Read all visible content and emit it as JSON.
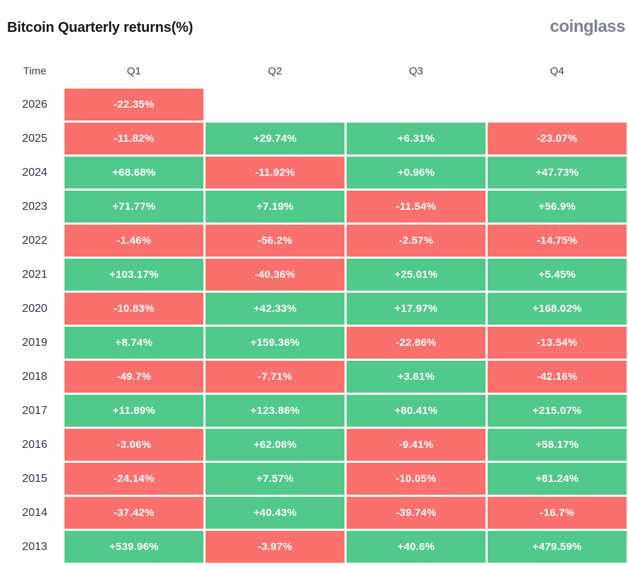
{
  "header": {
    "title": "Bitcoin Quarterly returns(%)",
    "logo_text": "coinglass"
  },
  "colors": {
    "positive": "#51c98b",
    "negative": "#f9706c",
    "cell_text": "#ffffff",
    "year_text": "#2c3444",
    "column_header_text": "#3a4250",
    "title_text": "#15181e",
    "logo_text": "#7c828d",
    "background": "#ffffff"
  },
  "chart_data": {
    "type": "heatmap",
    "title": "Bitcoin Quarterly returns(%)",
    "unit": "%",
    "legend_position": "none",
    "color_rule": "positive values green, negative values red",
    "columns": [
      "Time",
      "Q1",
      "Q2",
      "Q3",
      "Q4"
    ],
    "x_categories": [
      "Q1",
      "Q2",
      "Q3",
      "Q4"
    ],
    "y_categories": [
      "2026",
      "2025",
      "2024",
      "2023",
      "2022",
      "2021",
      "2020",
      "2019",
      "2018",
      "2017",
      "2016",
      "2015",
      "2014",
      "2013"
    ],
    "rows": [
      {
        "year": "2026",
        "values": [
          -22.35,
          null,
          null,
          null
        ],
        "labels": [
          "-22.35%",
          "",
          "",
          ""
        ]
      },
      {
        "year": "2025",
        "values": [
          -11.82,
          29.74,
          6.31,
          -23.07
        ],
        "labels": [
          "-11.82%",
          "+29.74%",
          "+6.31%",
          "-23.07%"
        ]
      },
      {
        "year": "2024",
        "values": [
          68.68,
          -11.92,
          0.96,
          47.73
        ],
        "labels": [
          "+68.68%",
          "-11.92%",
          "+0.96%",
          "+47.73%"
        ]
      },
      {
        "year": "2023",
        "values": [
          71.77,
          7.19,
          -11.54,
          56.9
        ],
        "labels": [
          "+71.77%",
          "+7.19%",
          "-11.54%",
          "+56.9%"
        ]
      },
      {
        "year": "2022",
        "values": [
          -1.46,
          -56.2,
          -2.57,
          -14.75
        ],
        "labels": [
          "-1.46%",
          "-56.2%",
          "-2.57%",
          "-14.75%"
        ]
      },
      {
        "year": "2021",
        "values": [
          103.17,
          -40.36,
          25.01,
          5.45
        ],
        "labels": [
          "+103.17%",
          "-40.36%",
          "+25.01%",
          "+5.45%"
        ]
      },
      {
        "year": "2020",
        "values": [
          -10.83,
          42.33,
          17.97,
          168.02
        ],
        "labels": [
          "-10.83%",
          "+42.33%",
          "+17.97%",
          "+168.02%"
        ]
      },
      {
        "year": "2019",
        "values": [
          8.74,
          159.36,
          -22.86,
          -13.54
        ],
        "labels": [
          "+8.74%",
          "+159.36%",
          "-22.86%",
          "-13.54%"
        ]
      },
      {
        "year": "2018",
        "values": [
          -49.7,
          -7.71,
          3.61,
          -42.16
        ],
        "labels": [
          "-49.7%",
          "-7.71%",
          "+3.61%",
          "-42.16%"
        ]
      },
      {
        "year": "2017",
        "values": [
          11.89,
          123.86,
          80.41,
          215.07
        ],
        "labels": [
          "+11.89%",
          "+123.86%",
          "+80.41%",
          "+215.07%"
        ]
      },
      {
        "year": "2016",
        "values": [
          -3.06,
          62.06,
          -9.41,
          58.17
        ],
        "labels": [
          "-3.06%",
          "+62.06%",
          "-9.41%",
          "+58.17%"
        ]
      },
      {
        "year": "2015",
        "values": [
          -24.14,
          7.57,
          -10.05,
          81.24
        ],
        "labels": [
          "-24.14%",
          "+7.57%",
          "-10.05%",
          "+81.24%"
        ]
      },
      {
        "year": "2014",
        "values": [
          -37.42,
          40.43,
          -39.74,
          -16.7
        ],
        "labels": [
          "-37.42%",
          "+40.43%",
          "-39.74%",
          "-16.7%"
        ]
      },
      {
        "year": "2013",
        "values": [
          539.96,
          -3.97,
          40.6,
          479.59
        ],
        "labels": [
          "+539.96%",
          "-3.97%",
          "+40.6%",
          "+479.59%"
        ]
      }
    ]
  }
}
